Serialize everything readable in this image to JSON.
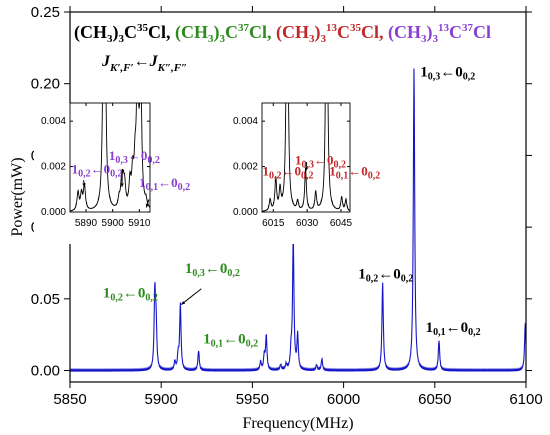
{
  "colors": {
    "spectrum": "#1515c8",
    "black": "#000000",
    "green": "#2e8b1f",
    "red": "#c0282a",
    "purple": "#8a3fd1"
  },
  "legend": {
    "items": [
      {
        "parts": [
          [
            "t",
            "(CH"
          ],
          [
            "sub",
            "3"
          ],
          [
            "t",
            ")"
          ],
          [
            "sub",
            "3"
          ],
          [
            "t",
            "C"
          ],
          [
            "sup",
            "35"
          ],
          [
            "t",
            "Cl, "
          ]
        ],
        "color_key": "black"
      },
      {
        "parts": [
          [
            "t",
            "(CH"
          ],
          [
            "sub",
            "3"
          ],
          [
            "t",
            ")"
          ],
          [
            "sub",
            "3"
          ],
          [
            "t",
            "C"
          ],
          [
            "sup",
            "37"
          ],
          [
            "t",
            "Cl, "
          ]
        ],
        "color_key": "green"
      },
      {
        "parts": [
          [
            "t",
            "(CH"
          ],
          [
            "sub",
            "3"
          ],
          [
            "t",
            ")"
          ],
          [
            "sub",
            "3"
          ],
          [
            "sup",
            "13"
          ],
          [
            "t",
            "C"
          ],
          [
            "sup",
            "35"
          ],
          [
            "t",
            "Cl, "
          ]
        ],
        "color_key": "red"
      },
      {
        "parts": [
          [
            "t",
            "(CH"
          ],
          [
            "sub",
            "3"
          ],
          [
            "t",
            ")"
          ],
          [
            "sub",
            "3"
          ],
          [
            "sup",
            "13"
          ],
          [
            "t",
            "C"
          ],
          [
            "sup",
            "37"
          ],
          [
            "t",
            "Cl"
          ]
        ],
        "color_key": "purple"
      }
    ],
    "quantum_label": [
      [
        "t",
        "J"
      ],
      [
        "sub",
        "K′,F′"
      ],
      [
        "t",
        "←J"
      ],
      [
        "sub",
        "K″,F″"
      ]
    ]
  },
  "chart_data": [
    {
      "type": "line",
      "xlabel": "Frequency(MHz)",
      "ylabel": "Power(mW)",
      "xlim": [
        5850,
        6100
      ],
      "ylim": [
        -0.008,
        0.25
      ],
      "xticks": [
        5850,
        5900,
        5950,
        6000,
        6050,
        6100
      ],
      "xtick_labels": [
        "5850",
        "5900",
        "5950",
        "6000",
        "6050",
        "6100"
      ],
      "yticks": [
        0.0,
        0.05,
        0.1,
        0.15,
        0.2,
        0.25
      ],
      "ytick_labels": [
        "0.00",
        "0.05",
        "0.10",
        "0.15",
        "0.20",
        "0.25"
      ],
      "baseline": 0.0,
      "peaks": [
        [
          5896.5,
          0.053
        ],
        [
          5897.2,
          0.03
        ],
        [
          5907.5,
          0.006
        ],
        [
          5909.3,
          0.01
        ],
        [
          5910.5,
          0.046
        ],
        [
          5920.5,
          0.014
        ],
        [
          5954.5,
          0.006
        ],
        [
          5956.5,
          0.01
        ],
        [
          5957.6,
          0.024
        ],
        [
          5965.5,
          0.004
        ],
        [
          5968.5,
          0.004
        ],
        [
          5971.2,
          0.012
        ],
        [
          5972.4,
          0.092
        ],
        [
          5974.8,
          0.024
        ],
        [
          5985.2,
          0.004
        ],
        [
          5988.1,
          0.008
        ],
        [
          6021.4,
          0.061
        ],
        [
          6038.6,
          0.211
        ],
        [
          6052.3,
          0.021
        ],
        [
          6099.6,
          0.033
        ]
      ],
      "annotations": [
        {
          "upper": "1",
          "upper_sub": "0,3",
          "arrow": "←",
          "lower": "0",
          "lower_sub": "0,2",
          "color_key": "black",
          "x": 6042,
          "y": 0.205
        },
        {
          "upper": "1",
          "upper_sub": "0,2",
          "arrow": "←",
          "lower": "0",
          "lower_sub": "0,2",
          "color_key": "black",
          "x": 6008,
          "y": 0.064
        },
        {
          "upper": "1",
          "upper_sub": "0,1",
          "arrow": "←",
          "lower": "0",
          "lower_sub": "0,2",
          "color_key": "black",
          "x": 6045,
          "y": 0.027
        },
        {
          "upper": "1",
          "upper_sub": "0,3",
          "arrow": "←",
          "lower": "0",
          "lower_sub": "0,2",
          "color_key": "green",
          "x": 5913,
          "y": 0.068
        },
        {
          "upper": "1",
          "upper_sub": "0,2",
          "arrow": "←",
          "lower": "0",
          "lower_sub": "0,2",
          "color_key": "green",
          "x": 5868,
          "y": 0.051
        },
        {
          "upper": "1",
          "upper_sub": "0,1",
          "arrow": "←",
          "lower": "0",
          "lower_sub": "0,2",
          "color_key": "green",
          "x": 5923,
          "y": 0.019
        }
      ],
      "arrows": [
        {
          "from": [
            5922,
            0.057
          ],
          "to": [
            5911,
            0.046
          ],
          "color_key": "black"
        }
      ]
    },
    {
      "type": "line",
      "inset": "left",
      "xlim": [
        5884,
        5914
      ],
      "ylim": [
        0,
        0.0048
      ],
      "xticks": [
        5890,
        5900,
        5910
      ],
      "xtick_labels": [
        "5890",
        "5900",
        "5910"
      ],
      "yticks": [
        0.0,
        0.002,
        0.004
      ],
      "ytick_labels": [
        "0.000",
        "0.002",
        "0.004"
      ],
      "peaks": [
        [
          5887.0,
          0.0008
        ],
        [
          5888.3,
          0.0007
        ],
        [
          5889.4,
          0.0011
        ],
        [
          5896.5,
          0.006
        ],
        [
          5897.2,
          0.006
        ],
        [
          5902.4,
          0.0004
        ],
        [
          5903.3,
          0.0009
        ],
        [
          5903.9,
          0.001
        ],
        [
          5904.5,
          0.0009
        ],
        [
          5906.5,
          0.0011
        ],
        [
          5907.5,
          0.0014
        ],
        [
          5908.4,
          0.0016
        ],
        [
          5909.3,
          0.006
        ],
        [
          5910.5,
          0.006
        ],
        [
          5912.5,
          0.0003
        ]
      ],
      "annotations": [
        {
          "upper": "1",
          "upper_sub": "0,2",
          "arrow": "←",
          "lower": "0",
          "lower_sub": "0,2",
          "color_key": "purple",
          "x": 5884.6,
          "y": 0.0017
        },
        {
          "upper": "1",
          "upper_sub": "0,3",
          "arrow": "←",
          "lower": "0",
          "lower_sub": "0,2",
          "color_key": "purple",
          "x": 5898.6,
          "y": 0.0023
        },
        {
          "upper": "1",
          "upper_sub": "0,1",
          "arrow": "←",
          "lower": "0",
          "lower_sub": "0,2",
          "color_key": "purple",
          "x": 5909.9,
          "y": 0.0011
        }
      ],
      "arrows": [
        {
          "from": [
            5889.1,
            0.0014
          ],
          "to": [
            5889.4,
            0.0011
          ],
          "color_key": "black"
        },
        {
          "from": [
            5903.6,
            0.0019
          ],
          "to": [
            5903.5,
            0.0011
          ],
          "color_key": "black"
        },
        {
          "from": [
            5913.6,
            0.00055
          ],
          "to": [
            5912.6,
            0.0002
          ],
          "color_key": "black"
        }
      ]
    },
    {
      "type": "line",
      "inset": "right",
      "xlim": [
        6010,
        6049
      ],
      "ylim": [
        0,
        0.0048
      ],
      "xticks": [
        6015,
        6030,
        6045
      ],
      "xtick_labels": [
        "6015",
        "6030",
        "6045"
      ],
      "yticks": [
        0.0,
        0.002,
        0.004
      ],
      "ytick_labels": [
        "0.000",
        "0.002",
        "0.004"
      ],
      "peaks": [
        [
          6013.6,
          0.0005
        ],
        [
          6016.1,
          0.0014
        ],
        [
          6018.0,
          0.0009
        ],
        [
          6020.9,
          0.006
        ],
        [
          6021.4,
          0.006
        ],
        [
          6025.8,
          0.0004
        ],
        [
          6029.3,
          0.0018
        ],
        [
          6033.8,
          0.0008
        ],
        [
          6038.4,
          0.006
        ],
        [
          6038.9,
          0.006
        ],
        [
          6045.3,
          0.0006
        ],
        [
          6047.2,
          0.0005
        ]
      ],
      "annotations": [
        {
          "upper": "1",
          "upper_sub": "0,2",
          "arrow": "←",
          "lower": "0",
          "lower_sub": "0,2",
          "color_key": "red",
          "x": 6010.2,
          "y": 0.0016
        },
        {
          "upper": "1",
          "upper_sub": "0,3",
          "arrow": "←",
          "lower": "0",
          "lower_sub": "0,2",
          "color_key": "red",
          "x": 6024.6,
          "y": 0.0021
        },
        {
          "upper": "1",
          "upper_sub": "0,1",
          "arrow": "←",
          "lower": "0",
          "lower_sub": "0,2",
          "color_key": "red",
          "x": 6039.8,
          "y": 0.0016
        }
      ],
      "arrows": [
        {
          "from": [
            6029.8,
            0.0022
          ],
          "to": [
            6029.5,
            0.0018
          ],
          "color_key": "black"
        }
      ]
    }
  ]
}
